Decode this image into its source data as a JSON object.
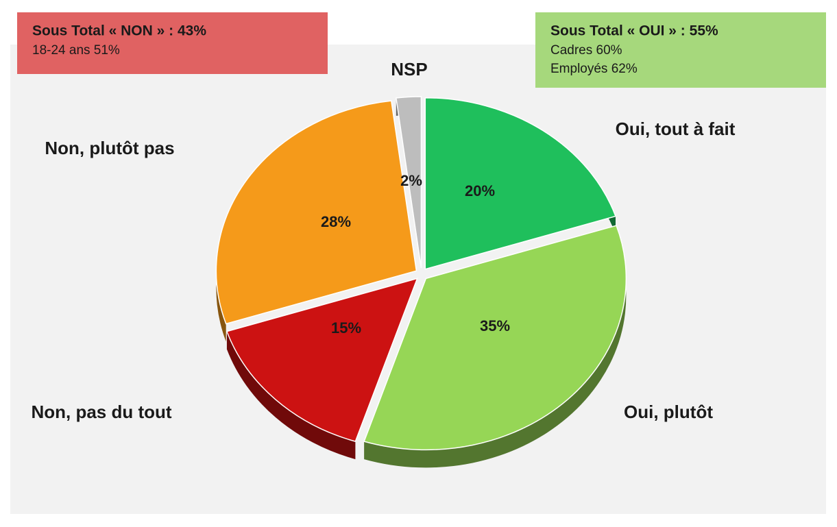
{
  "chart_data": {
    "type": "pie",
    "categories": [
      "Oui, tout à fait",
      "Oui, plutôt",
      "Non, pas du tout",
      "Non, plutôt pas",
      "NSP"
    ],
    "values": [
      20,
      35,
      15,
      28,
      2
    ],
    "value_labels": [
      "20%",
      "35%",
      "15%",
      "28%",
      "2%"
    ],
    "colors": [
      "#1fbf5c",
      "#96d656",
      "#cc1212",
      "#f59a1a",
      "#bdbdbd"
    ],
    "annotations": [
      {
        "title": "Sous Total  « NON » : 43%",
        "lines": [
          "18-24 ans 51%"
        ],
        "color": "#e06262"
      },
      {
        "title": "Sous Total « OUI » : 55%",
        "lines": [
          "Cadres 60%",
          "Employés 62%"
        ],
        "color": "#a6d87c"
      }
    ]
  }
}
